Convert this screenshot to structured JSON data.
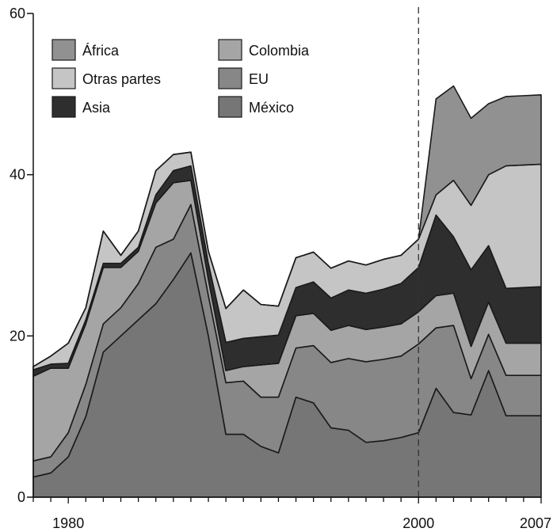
{
  "chart_data": {
    "type": "area",
    "stacked": true,
    "title": "",
    "xlabel": "",
    "ylabel": "",
    "xlim": [
      1978,
      2007
    ],
    "ylim": [
      0,
      60
    ],
    "x_tick_labels": [
      "1980",
      "2000",
      "2007"
    ],
    "y_tick_labels": [
      "0",
      "20",
      "40",
      "60"
    ],
    "reference_line": {
      "x": 2000,
      "style": "dashed"
    },
    "legend_position": "top-left",
    "x": [
      1978,
      1979,
      1980,
      1981,
      1982,
      1983,
      1984,
      1985,
      1986,
      1987,
      1988,
      1989,
      1990,
      1991,
      1992,
      1993,
      1994,
      1995,
      1996,
      1997,
      1998,
      1999,
      2000,
      2001,
      2002,
      2003,
      2004,
      2005,
      2006,
      2007
    ],
    "series": [
      {
        "name": "México",
        "color": "#767676",
        "values": [
          2.5,
          3.0,
          5.0,
          10.0,
          18.0,
          20.0,
          22.0,
          24.0,
          27.0,
          30.3,
          20.0,
          7.8,
          7.8,
          6.3,
          5.5,
          12.4,
          11.7,
          8.6,
          8.3,
          6.8,
          7.0,
          7.4,
          8.0,
          13.5,
          10.5,
          10.2,
          15.7,
          10.1,
          10.1,
          10.1
        ]
      },
      {
        "name": "EU",
        "color": "#878787",
        "values": [
          2.0,
          2.0,
          3.0,
          4.0,
          3.5,
          3.5,
          4.5,
          7.0,
          5.0,
          6.0,
          5.0,
          6.4,
          6.6,
          6.1,
          6.9,
          6.1,
          7.1,
          8.1,
          8.9,
          10.0,
          10.1,
          10.1,
          11.0,
          7.5,
          10.8,
          4.5,
          4.5,
          5.0,
          5.0,
          5.0
        ]
      },
      {
        "name": "Colombia",
        "color": "#a5a5a5",
        "values": [
          10.5,
          11.0,
          8.0,
          7.5,
          7.0,
          5.0,
          4.0,
          5.5,
          7.0,
          3.0,
          2.0,
          1.5,
          1.8,
          4.0,
          4.2,
          4.0,
          4.0,
          4.0,
          4.1,
          4.0,
          4.0,
          4.0,
          4.0,
          4.0,
          4.0,
          4.0,
          4.0,
          4.0,
          4.0,
          4.0
        ]
      },
      {
        "name": "Asia",
        "color": "#2e2e2e",
        "values": [
          0.8,
          0.5,
          0.6,
          0.5,
          0.5,
          0.5,
          0.5,
          1.0,
          1.5,
          1.8,
          2.0,
          3.5,
          3.5,
          3.5,
          3.5,
          3.5,
          3.9,
          4.0,
          4.4,
          4.5,
          4.7,
          5.0,
          5.5,
          10.0,
          7.0,
          9.5,
          7.0,
          6.8,
          6.9,
          7.0
        ]
      },
      {
        "name": "Otras partes",
        "color": "#c5c5c5",
        "values": [
          0.4,
          1.0,
          2.5,
          1.5,
          4.0,
          1.0,
          2.0,
          3.0,
          2.0,
          1.7,
          1.5,
          4.2,
          6.0,
          4.0,
          3.6,
          3.7,
          3.7,
          3.7,
          3.6,
          3.5,
          3.7,
          3.5,
          3.5,
          2.5,
          7.0,
          8.0,
          8.8,
          15.2,
          15.2,
          15.2
        ]
      },
      {
        "name": "África",
        "color": "#919191",
        "values": [
          0,
          0,
          0,
          0,
          0,
          0,
          0,
          0,
          0,
          0,
          0,
          0,
          0,
          0,
          0,
          0,
          0,
          0,
          0,
          0,
          0,
          0,
          0,
          11.9,
          11.7,
          10.8,
          8.8,
          8.6,
          8.6,
          8.6
        ]
      }
    ]
  }
}
